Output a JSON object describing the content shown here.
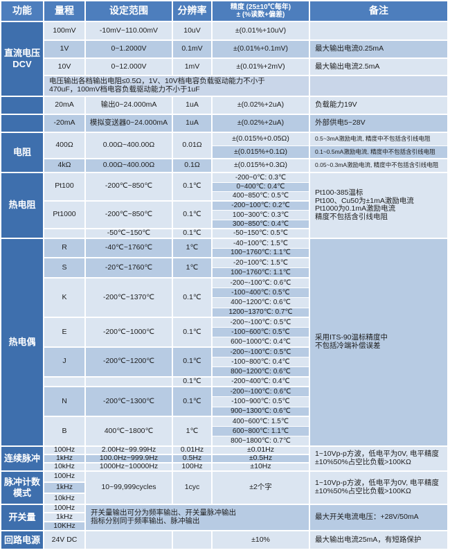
{
  "colors": {
    "header_blue": "#4d7ebd",
    "function_blue": "#3e6fad",
    "row_light": "#dbe5f1",
    "row_medium": "#b7cbe3",
    "row_mid": "#c9d6e9",
    "border_white": "#ffffff",
    "text_dark": "#1c1c1c"
  },
  "header": {
    "columns": [
      "功能",
      "量程",
      "设定范围",
      "分辨率",
      "精度 (25±10℃每年)\n± (%读数+偏差)",
      "备注"
    ]
  },
  "sections": [
    {
      "function": "直流电压\nDCV",
      "groups": [
        {
          "range": "100mV",
          "setting": "-10mV~110.00mV",
          "resolution": "10uV",
          "gshade": "L",
          "rows": [
            {
              "accuracy": "±(0.01%+10uV)",
              "note": "",
              "shade": "L"
            }
          ]
        },
        {
          "range": "1V",
          "setting": "0~1.2000V",
          "resolution": "0.1mV",
          "gshade": "M",
          "rows": [
            {
              "accuracy": "±(0.01%+0.1mV)",
              "note": "最大输出电流0.25mA",
              "shade": "M"
            }
          ]
        },
        {
          "range": "10V",
          "setting": "0~12.000V",
          "resolution": "1mV",
          "gshade": "L",
          "rows": [
            {
              "accuracy": "±(0.01%+2mV)",
              "note": "最大输出电流2.5mA",
              "shade": "L"
            }
          ]
        },
        {
          "type": "fullnote",
          "text": "电压输出各档输出电阻≤0.5Ω，1V、10V档电容负载驱动能力不小于\n470uF，100mV档电容负载驱动能力不小于1uF",
          "note": "",
          "shade": "mid"
        }
      ]
    },
    {
      "function": "",
      "groups": [
        {
          "range": "20mA",
          "setting": "输出0~24.000mA",
          "resolution": "1uA",
          "gshade": "L",
          "rows": [
            {
              "accuracy": "±(0.02%+2uA)",
              "note": "负载能力19V",
              "shade": "L"
            }
          ]
        }
      ]
    },
    {
      "function": "",
      "groups": [
        {
          "range": "-20mA",
          "setting": "模拟变送器0~24.000mA",
          "resolution": "1uA",
          "gshade": "M",
          "rows": [
            {
              "accuracy": "±(0.02%+2uA)",
              "note": "外部供电5~28V",
              "shade": "M"
            }
          ]
        }
      ]
    },
    {
      "function": "电阻",
      "groups": [
        {
          "range": "400Ω",
          "setting": "0.00Ω~400.00Ω",
          "resolution": "0.01Ω",
          "gshade": "L",
          "rows": [
            {
              "accuracy": "±(0.015%+0.05Ω)",
              "note": "0.5~3mA激励电流, 精度中不包括含引线电阻",
              "shade": "L"
            },
            {
              "accuracy": "±(0.015%+0.1Ω)",
              "note": "0.1~0.5mA激励电流, 精度中不包括含引线电阻",
              "shade": "M"
            }
          ]
        },
        {
          "range": "4kΩ",
          "setting": "0.00Ω~400.00Ω",
          "resolution": "0.1Ω",
          "gshade": "M",
          "rows": [
            {
              "accuracy": "±(0.015%+0.3Ω)",
              "note": "0.05~0.3mA激励电流, 精度中不包括含引线电阻",
              "shade": "L"
            }
          ]
        }
      ]
    },
    {
      "function": "热电阻",
      "note": {
        "text": "Pt100-385温标\nPt100、Cu50为±1mA激励电流\nPt1000为0.1mA激励电流\n精度不包括含引线电阻",
        "shade": "L"
      },
      "groups": [
        {
          "range": "Pt100",
          "setting": "-200℃~850℃",
          "resolution": "0.1℃",
          "gshade": "L",
          "rows": [
            {
              "accuracy": "-200~0℃: 0.3℃",
              "shade": "L"
            },
            {
              "accuracy": "0~400℃: 0.4℃",
              "shade": "M"
            },
            {
              "accuracy": "400~850℃: 0.5℃",
              "shade": "L"
            }
          ]
        },
        {
          "range": "Pt1000",
          "setting": "-200℃~850℃",
          "resolution": "0.1℃",
          "gshade": "L",
          "rows": [
            {
              "accuracy": "-200~100℃: 0.2℃",
              "shade": "M"
            },
            {
              "accuracy": "100~300℃: 0.3℃",
              "shade": "L"
            },
            {
              "accuracy": "300~850℃: 0.4℃",
              "shade": "M"
            }
          ]
        },
        {
          "range": "",
          "setting": "-50℃~150℃",
          "resolution": "0.1℃",
          "gshade": "L",
          "rows": [
            {
              "accuracy": "-50~150℃: 0.5℃",
              "shade": "L"
            }
          ]
        }
      ]
    },
    {
      "function": "热电偶",
      "note": {
        "text": "采用ITS-90温标精度中\n不包括冷端补偿误差",
        "shade": "M"
      },
      "groups": [
        {
          "range": "R",
          "setting": "-40℃~1760℃",
          "resolution": "1℃",
          "gshade": "M",
          "rows": [
            {
              "accuracy": "-40~100℃: 1.5℃",
              "shade": "L"
            },
            {
              "accuracy": "100~1760℃: 1.1℃",
              "shade": "M"
            }
          ]
        },
        {
          "range": "S",
          "setting": "-20℃~1760℃",
          "resolution": "1℃",
          "gshade": "M",
          "rows": [
            {
              "accuracy": "-20~100℃: 1.5℃",
              "shade": "L"
            },
            {
              "accuracy": "100~1760℃: 1.1℃",
              "shade": "M"
            }
          ]
        },
        {
          "range": "K",
          "setting": "-200℃~1370℃",
          "resolution": "0.1℃",
          "gshade": "L",
          "rows": [
            {
              "accuracy": "-200~-100℃: 0.6℃",
              "shade": "L"
            },
            {
              "accuracy": "-100~400℃: 0.5℃",
              "shade": "M"
            },
            {
              "accuracy": "400~1200℃: 0.6℃",
              "shade": "L"
            },
            {
              "accuracy": "1200~1370℃: 0.7℃",
              "shade": "M"
            }
          ]
        },
        {
          "range": "E",
          "setting": "-200℃~1000℃",
          "resolution": "0.1℃",
          "gshade": "L",
          "rows": [
            {
              "accuracy": "-200~-100℃: 0.5℃",
              "shade": "L"
            },
            {
              "accuracy": "-100~600℃: 0.5℃",
              "shade": "M"
            },
            {
              "accuracy": "600~1000℃: 0.4℃",
              "shade": "L"
            }
          ]
        },
        {
          "range": "J",
          "setting": "-200℃~1200℃",
          "resolution": "0.1℃",
          "gshade": "M",
          "rows": [
            {
              "accuracy": "-200~-100℃: 0.5℃",
              "shade": "M"
            },
            {
              "accuracy": "-100~800℃: 0.4℃",
              "shade": "L"
            },
            {
              "accuracy": "800~1200℃: 0.6℃",
              "shade": "M"
            }
          ]
        },
        {
          "range": "",
          "setting": "",
          "resolution": "0.1℃",
          "gshade": "L",
          "rows": [
            {
              "accuracy": "-200~400℃: 0.4℃",
              "shade": "L"
            }
          ]
        },
        {
          "range": "N",
          "setting": "-200℃~1300℃",
          "resolution": "0.1℃",
          "gshade": "M",
          "rows": [
            {
              "accuracy": "-200~-100℃: 0.6℃",
              "shade": "M"
            },
            {
              "accuracy": "-100~900℃: 0.5℃",
              "shade": "L"
            },
            {
              "accuracy": "900~1300℃: 0.6℃",
              "shade": "M"
            }
          ]
        },
        {
          "range": "B",
          "setting": "400℃~1800℃",
          "resolution": "1℃",
          "gshade": "L",
          "rows": [
            {
              "accuracy": "400~600℃: 1.5℃",
              "shade": "L"
            },
            {
              "accuracy": "600~800℃: 1.1℃",
              "shade": "M"
            },
            {
              "accuracy": "800~1800℃: 0.7℃",
              "shade": "L"
            }
          ]
        }
      ]
    },
    {
      "function": "连续脉冲",
      "note": {
        "text": "1~10Vp-p方波，低电平为0V, 电平精度±10%50%占空比负载>100KΩ",
        "shade": "L"
      },
      "groups": [
        {
          "range": "100Hz",
          "setting": "2.00Hz~99.99Hz",
          "resolution": "0.01Hz",
          "gshade": "L",
          "rows": [
            {
              "accuracy": "±0.01Hz",
              "shade": "L"
            }
          ]
        },
        {
          "range": "1kHz",
          "setting": "100.0Hz~999.9Hz",
          "resolution": "0.5Hz",
          "gshade": "M",
          "rows": [
            {
              "accuracy": "±0.5Hz",
              "shade": "M"
            }
          ]
        },
        {
          "range": "10kHz",
          "setting": "1000Hz~10000Hz",
          "resolution": "100Hz",
          "gshade": "L",
          "rows": [
            {
              "accuracy": "±10Hz",
              "shade": "L"
            }
          ]
        }
      ]
    },
    {
      "function": "脉冲计数\n模式",
      "note": {
        "text": "1~10Vp-p方波，低电平为0V, 电平精度±10%50%占空比负载>100KΩ",
        "shade": "L"
      },
      "groups": [
        {
          "type": "shared",
          "gshade": "L",
          "ranges": [
            {
              "label": "100Hz",
              "shade": "L"
            },
            {
              "label": "1kHz",
              "shade": "M"
            },
            {
              "label": "10kHz",
              "shade": "L"
            }
          ],
          "setting": "10~99,999cycles",
          "resolution": "1cyc",
          "accuracy": "±2个字"
        }
      ]
    },
    {
      "function": "开关量",
      "note": {
        "text": "最大开关电流电压：+28V/50mA",
        "shade": "M"
      },
      "groups": [
        {
          "type": "mergedtext",
          "gshade": "M",
          "ranges": [
            {
              "label": "100Hz",
              "shade": "L"
            },
            {
              "label": "1kHz",
              "shade": "L"
            },
            {
              "label": "10KHz",
              "shade": "M"
            }
          ],
          "text": "开关量输出可分为频率输出、开关量脉冲输出\n指标分别同于频率输出、脉冲输出"
        }
      ]
    },
    {
      "function": "回路电源",
      "groups": [
        {
          "range": "24V DC",
          "setting": "",
          "resolution": "",
          "gshade": "L",
          "rows": [
            {
              "accuracy": "±10%",
              "note": "最大输出电流25mA，有短路保护",
              "shade": "L"
            }
          ]
        }
      ]
    }
  ]
}
